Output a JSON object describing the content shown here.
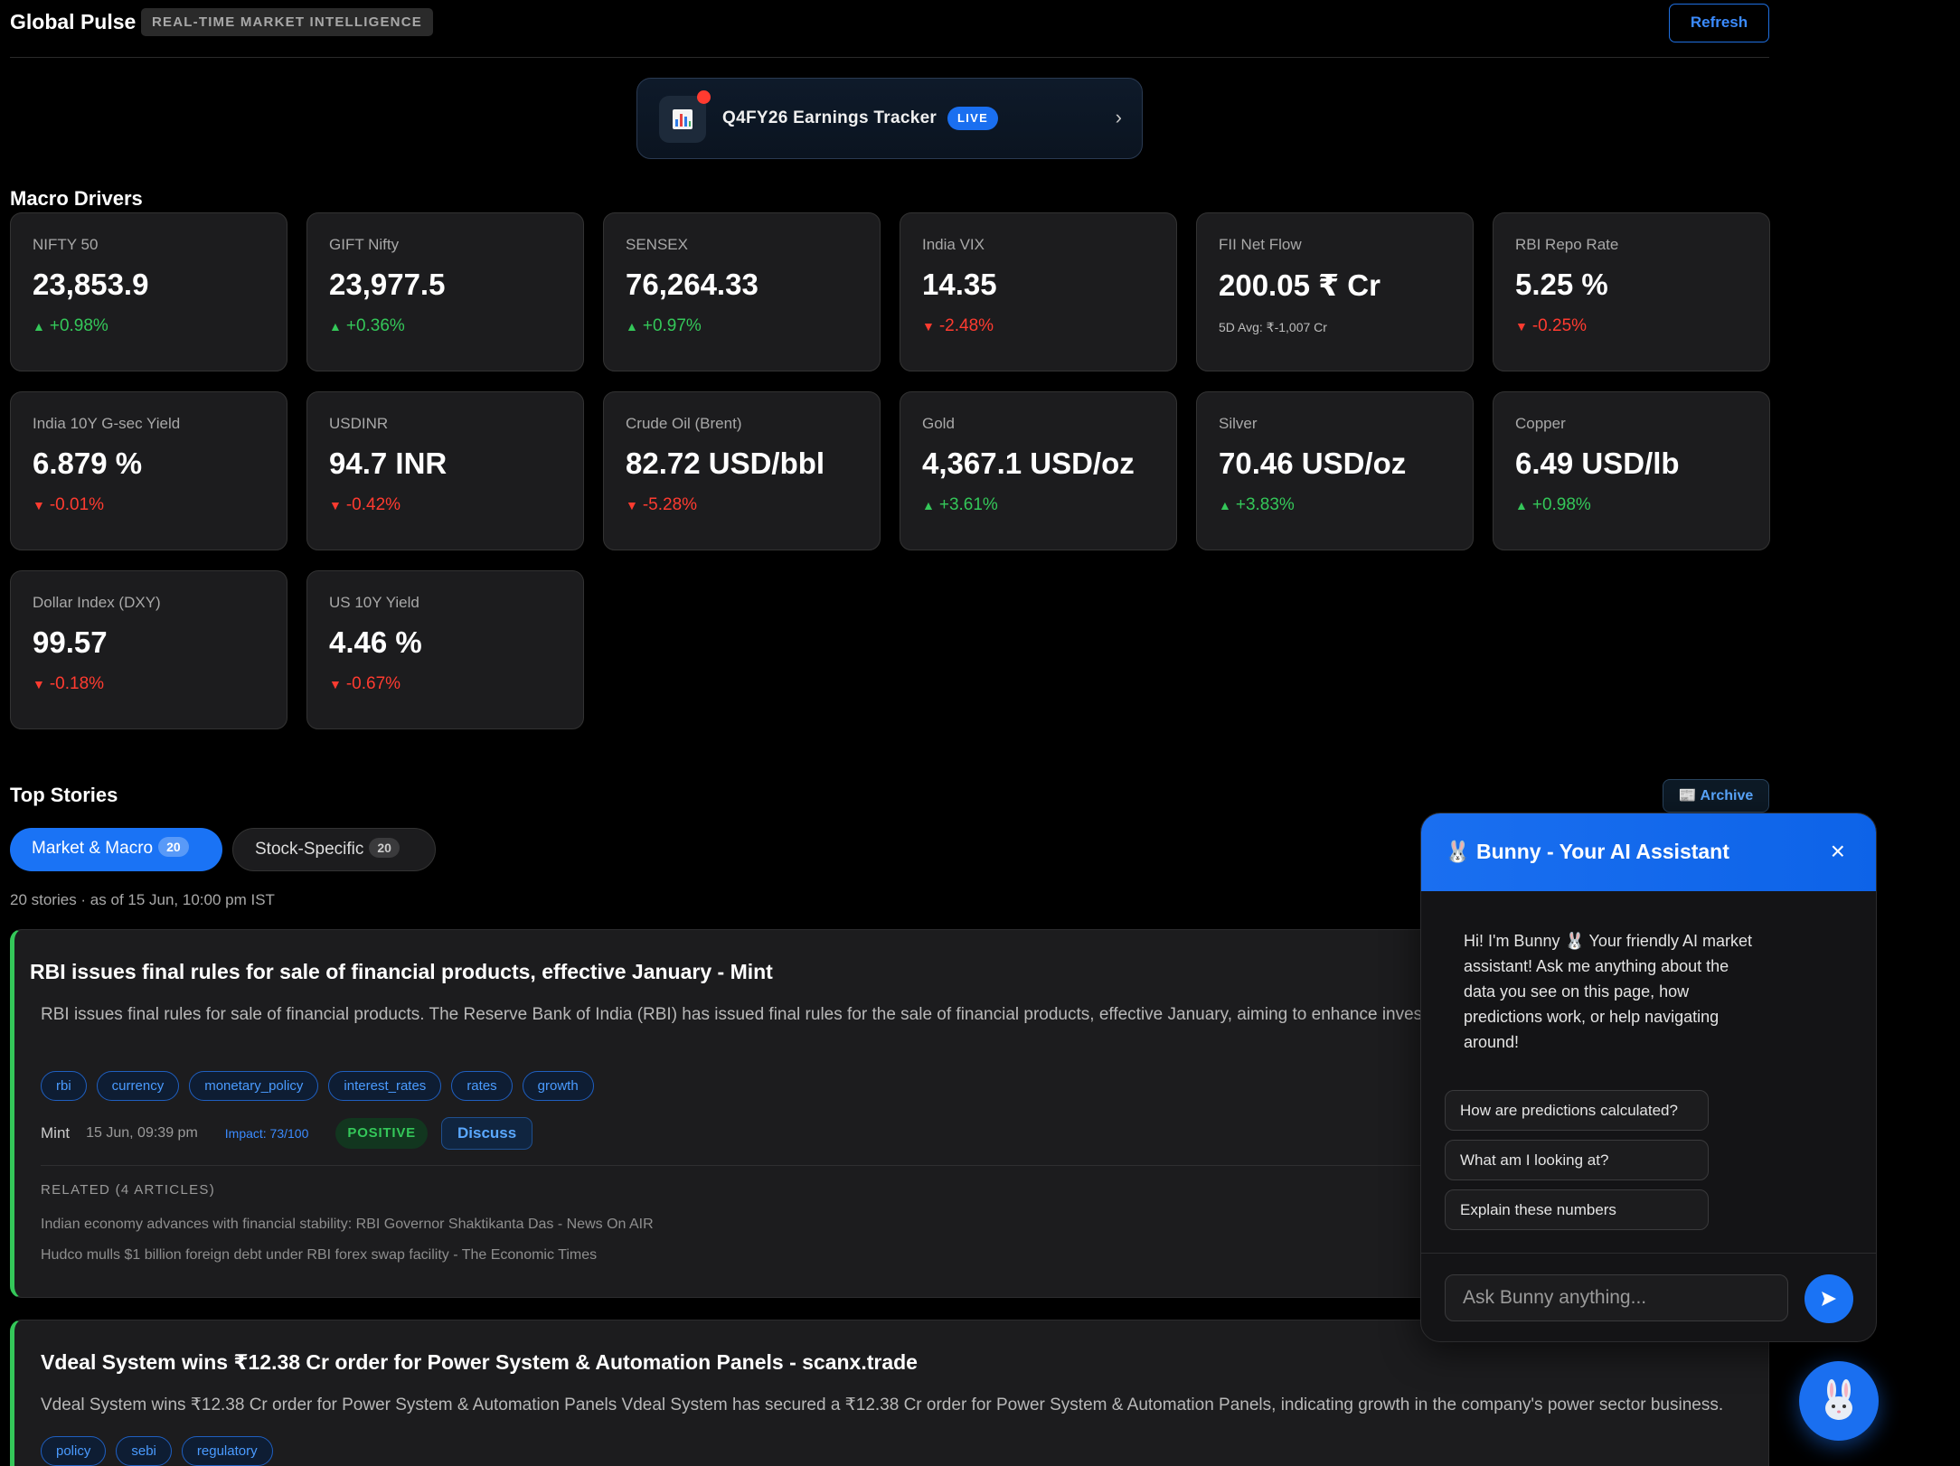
{
  "header": {
    "brand": "Global Pulse",
    "tagline": "REAL-TIME MARKET INTELLIGENCE",
    "refresh_label": "Refresh"
  },
  "banner": {
    "title": "Q4FY26 Earnings Tracker",
    "badge": "LIVE",
    "chevron": "›",
    "icon": "bar-chart-icon"
  },
  "macro": {
    "title": "Macro Drivers",
    "cards": [
      {
        "label": "NIFTY 50",
        "value": "23,853.9",
        "change": "+0.98%",
        "direction": "up"
      },
      {
        "label": "GIFT Nifty",
        "value": "23,977.5",
        "change": "+0.36%",
        "direction": "up"
      },
      {
        "label": "SENSEX",
        "value": "76,264.33",
        "change": "+0.97%",
        "direction": "up"
      },
      {
        "label": "India VIX",
        "value": "14.35",
        "change": "-2.48%",
        "direction": "down"
      },
      {
        "label": "FII Net Flow",
        "value": "200.05 ₹ Cr",
        "sub": "5D Avg: ₹-1,007 Cr"
      },
      {
        "label": "RBI Repo Rate",
        "value": "5.25 %",
        "change": "-0.25%",
        "direction": "down"
      },
      {
        "label": "India 10Y G-sec Yield",
        "value": "6.879 %",
        "change": "-0.01%",
        "direction": "down"
      },
      {
        "label": "USDINR",
        "value": "94.7 INR",
        "change": "-0.42%",
        "direction": "down"
      },
      {
        "label": "Crude Oil (Brent)",
        "value": "82.72 USD/bbl",
        "change": "-5.28%",
        "direction": "down"
      },
      {
        "label": "Gold",
        "value": "4,367.1 USD/oz",
        "change": "+3.61%",
        "direction": "up"
      },
      {
        "label": "Silver",
        "value": "70.46 USD/oz",
        "change": "+3.83%",
        "direction": "up"
      },
      {
        "label": "Copper",
        "value": "6.49 USD/lb",
        "change": "+0.98%",
        "direction": "up"
      },
      {
        "label": "Dollar Index (DXY)",
        "value": "99.57",
        "change": "-0.18%",
        "direction": "down"
      },
      {
        "label": "US 10Y Yield",
        "value": "4.46 %",
        "change": "-0.67%",
        "direction": "down"
      }
    ]
  },
  "stories": {
    "title": "Top Stories",
    "archive_label": "📰 Archive",
    "tabs": [
      {
        "label": "Market & Macro",
        "count": "20"
      },
      {
        "label": "Stock-Specific",
        "count": "20"
      }
    ],
    "meta": "20 stories · as of 15 Jun, 10:00 pm IST",
    "items": [
      {
        "title": "RBI issues final rules for sale of financial products, effective January - Mint",
        "summary": "RBI issues final rules for sale of financial products. The Reserve Bank of India (RBI) has issued final rules for the sale of financial products, effective January, aiming to enhance investor protection and market efficiency.",
        "tags": [
          "rbi",
          "currency",
          "monetary_policy",
          "interest_rates",
          "rates",
          "growth"
        ],
        "source": "Mint",
        "time": "15 Jun, 09:39 pm",
        "impact": "Impact: 73/100",
        "sentiment": "POSITIVE",
        "discuss": "Discuss",
        "related_heading": "RELATED (4 ARTICLES)",
        "related": [
          "Indian economy advances with financial stability: RBI Governor Shaktikanta Das - News On AIR",
          "Hudco mulls $1 billion foreign debt under RBI forex swap facility - The Economic Times"
        ]
      },
      {
        "title": "Vdeal System wins ₹12.38 Cr order for Power System & Automation Panels - scanx.trade",
        "summary": "Vdeal System wins ₹12.38 Cr order for Power System & Automation Panels Vdeal System has secured a ₹12.38 Cr order for Power System & Automation Panels, indicating growth in the company's power sector business.",
        "tags": [
          "policy",
          "sebi",
          "regulatory"
        ]
      }
    ]
  },
  "chat": {
    "title": "🐰 Bunny - Your AI Assistant",
    "close": "×",
    "message": "Hi! I'm Bunny 🐰 Your friendly AI market assistant! Ask me anything about the data you see on this page, how predictions work, or help navigating around!",
    "suggestions": [
      "How are predictions calculated?",
      "What am I looking at?",
      "Explain these numbers"
    ],
    "input_placeholder": "Ask Bunny anything..."
  },
  "colors": {
    "accent": "#1a73f5",
    "up": "#34c759",
    "down": "#ff3b30",
    "card_bg": "#1c1c1e"
  }
}
